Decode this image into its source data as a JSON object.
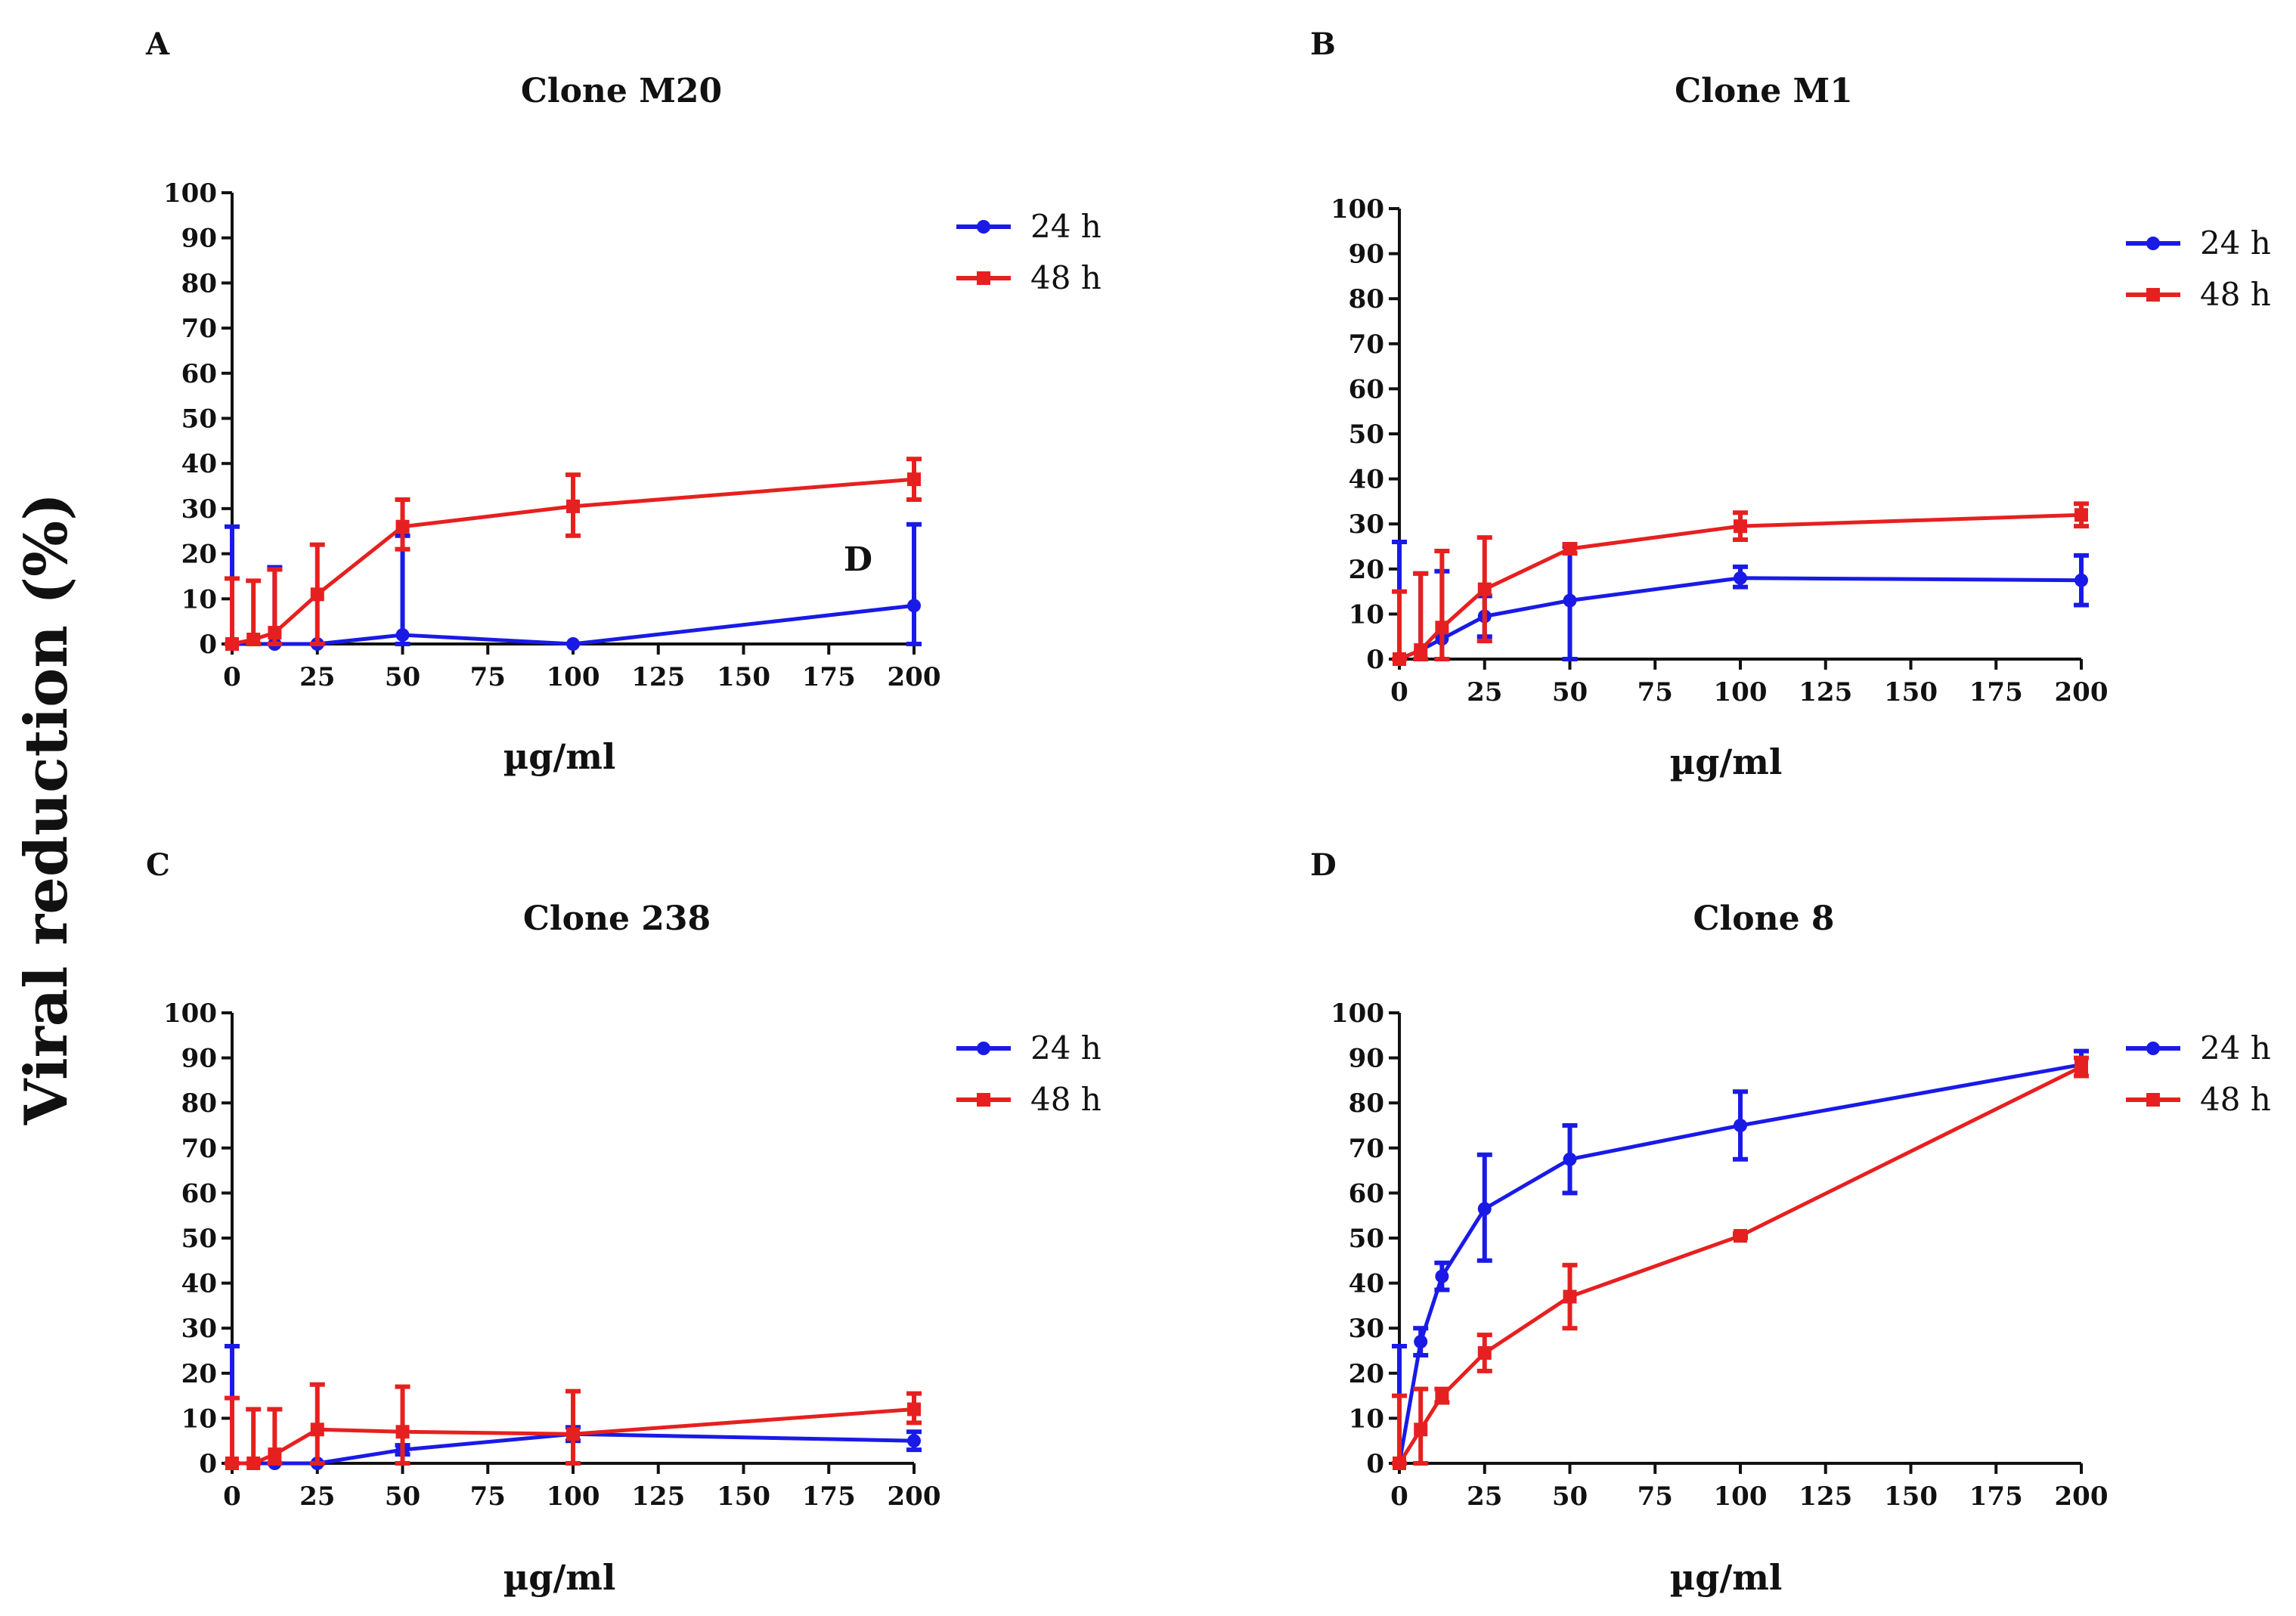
{
  "figure": {
    "ylabel": "Viral reduction (%)"
  },
  "chart_data": [
    {
      "type": "line",
      "panel": "A",
      "title": "Clone M20",
      "xlabel": "µg/ml",
      "ylabel": "Viral reduction (%)",
      "xlim": [
        0,
        200
      ],
      "ylim": [
        0,
        100
      ],
      "xticks": [
        0,
        25,
        50,
        75,
        100,
        125,
        150,
        175,
        200
      ],
      "yticks": [
        0,
        10,
        20,
        30,
        40,
        50,
        60,
        70,
        80,
        90,
        100
      ],
      "legend_position": "top-right",
      "annotation": "D",
      "series": [
        {
          "name": "24 h",
          "color": "#1a1ae6",
          "marker": "circle",
          "x": [
            0,
            12.5,
            25,
            50,
            100,
            200
          ],
          "y": [
            0,
            0,
            -2,
            2,
            -3,
            8.5
          ],
          "err_hi": [
            26,
            17,
            0,
            24,
            0,
            26.5
          ],
          "err_lo": [
            0,
            0,
            0,
            0,
            0,
            0
          ]
        },
        {
          "name": "48 h",
          "color": "#e62020",
          "marker": "square",
          "x": [
            0,
            6.25,
            12.5,
            25,
            50,
            100,
            200
          ],
          "y": [
            0,
            1,
            2.5,
            11,
            26,
            30.5,
            36.5
          ],
          "err_hi": [
            14.5,
            14,
            16.5,
            22,
            32,
            37.5,
            41
          ],
          "err_lo": [
            0,
            0,
            0,
            0,
            21,
            24,
            32
          ]
        }
      ]
    },
    {
      "type": "line",
      "panel": "B",
      "title": "Clone M1",
      "xlabel": "µg/ml",
      "ylabel": "Viral reduction (%)",
      "xlim": [
        0,
        200
      ],
      "ylim": [
        0,
        100
      ],
      "xticks": [
        0,
        25,
        50,
        75,
        100,
        125,
        150,
        175,
        200
      ],
      "yticks": [
        0,
        10,
        20,
        30,
        40,
        50,
        60,
        70,
        80,
        90,
        100
      ],
      "legend_position": "top-right",
      "series": [
        {
          "name": "24 h",
          "color": "#1a1ae6",
          "marker": "circle",
          "x": [
            0,
            6.25,
            12.5,
            25,
            50,
            100,
            200
          ],
          "y": [
            0,
            2,
            4.5,
            9.5,
            13,
            18,
            17.5
          ],
          "err_hi": [
            26,
            19,
            19.5,
            14,
            25,
            20.5,
            23
          ],
          "err_lo": [
            0,
            0,
            0,
            5,
            0,
            16,
            12
          ]
        },
        {
          "name": "48 h",
          "color": "#e62020",
          "marker": "square",
          "x": [
            0,
            6.25,
            12.5,
            25,
            50,
            100,
            200
          ],
          "y": [
            0,
            2,
            7,
            15.5,
            24.5,
            29.5,
            32
          ],
          "err_hi": [
            15,
            19,
            24,
            27,
            25.5,
            32.5,
            34.5
          ],
          "err_lo": [
            0,
            0,
            0,
            4,
            23.5,
            26.5,
            29.5
          ]
        }
      ]
    },
    {
      "type": "line",
      "panel": "C",
      "title": "Clone 238",
      "xlabel": "µg/ml",
      "ylabel": "Viral reduction (%)",
      "xlim": [
        0,
        200
      ],
      "ylim": [
        0,
        100
      ],
      "xticks": [
        0,
        25,
        50,
        75,
        100,
        125,
        150,
        175,
        200
      ],
      "yticks": [
        0,
        10,
        20,
        30,
        40,
        50,
        60,
        70,
        80,
        90,
        100
      ],
      "legend_position": "top-right",
      "series": [
        {
          "name": "24 h",
          "color": "#1a1ae6",
          "marker": "circle",
          "x": [
            0,
            6.25,
            12.5,
            25,
            50,
            100,
            200
          ],
          "y": [
            0,
            0,
            0,
            0,
            3,
            6.5,
            5
          ],
          "err_hi": [
            26,
            0,
            0,
            0,
            4,
            8,
            7
          ],
          "err_lo": [
            0,
            0,
            0,
            0,
            2,
            5,
            3
          ]
        },
        {
          "name": "48 h",
          "color": "#e62020",
          "marker": "square",
          "x": [
            0,
            6.25,
            12.5,
            25,
            50,
            100,
            200
          ],
          "y": [
            0,
            0,
            2,
            7.5,
            7,
            6.5,
            12
          ],
          "err_hi": [
            14.5,
            12,
            12,
            17.5,
            17,
            16,
            15.5
          ],
          "err_lo": [
            0,
            0,
            0,
            0,
            0,
            0,
            9
          ]
        }
      ]
    },
    {
      "type": "line",
      "panel": "D",
      "title": "Clone 8",
      "xlabel": "µg/ml",
      "ylabel": "Viral reduction (%)",
      "xlim": [
        0,
        200
      ],
      "ylim": [
        0,
        100
      ],
      "xticks": [
        0,
        25,
        50,
        75,
        100,
        125,
        150,
        175,
        200
      ],
      "yticks": [
        0,
        10,
        20,
        30,
        40,
        50,
        60,
        70,
        80,
        90,
        100
      ],
      "legend_position": "top-right",
      "series": [
        {
          "name": "24 h",
          "color": "#1a1ae6",
          "marker": "circle",
          "x": [
            0,
            6.25,
            12.5,
            25,
            50,
            100,
            200
          ],
          "y": [
            0,
            27,
            41.5,
            56.5,
            67.5,
            75,
            88.5
          ],
          "err_hi": [
            26,
            30,
            44.5,
            68.5,
            75,
            82.5,
            91.5
          ],
          "err_lo": [
            0,
            24,
            38.5,
            45,
            60,
            67.5,
            86
          ]
        },
        {
          "name": "48 h",
          "color": "#e62020",
          "marker": "square",
          "x": [
            0,
            6.25,
            12.5,
            25,
            50,
            100,
            200
          ],
          "y": [
            0,
            7.5,
            15,
            24.5,
            37,
            50.5,
            88
          ],
          "err_hi": [
            15,
            16.5,
            16.5,
            28.5,
            44,
            51,
            90
          ],
          "err_lo": [
            0,
            0,
            13.5,
            20.5,
            30,
            50,
            86
          ]
        }
      ]
    }
  ]
}
